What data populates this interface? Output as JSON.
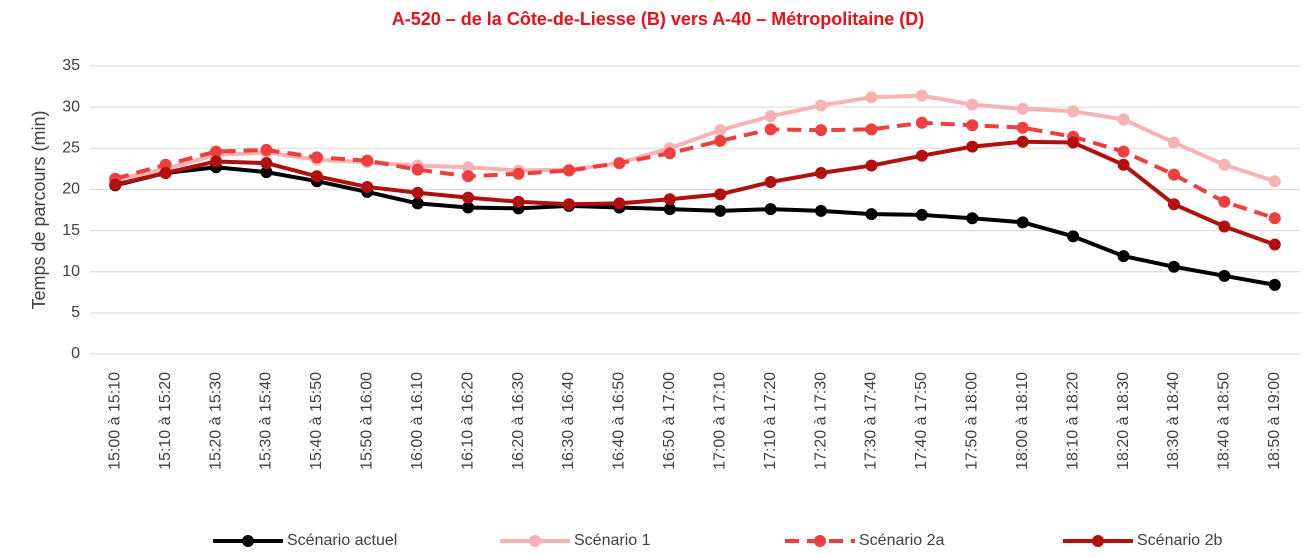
{
  "chart_data": {
    "type": "line",
    "title": "A-520 – de la Côte-de-Liesse (B) vers A-40 – Métropolitaine (D)",
    "y_label": "Temps de parcours (min)",
    "categories": [
      "15:00 à 15:10",
      "15:10 à 15:20",
      "15:20 à 15:30",
      "15:30 à 15:40",
      "15:40 à 15:50",
      "15:50 à 16:00",
      "16:00 à 16:10",
      "16:10 à 16:20",
      "16:20 à 16:30",
      "16:30 à 16:40",
      "16:40 à 16:50",
      "16:50 à 17:00",
      "17:00 à 17:10",
      "17:10 à 17:20",
      "17:20 à 17:30",
      "17:30 à 17:40",
      "17:40 à 17:50",
      "17:50 à 18:00",
      "18:00 à 18:10",
      "18:10 à 18:20",
      "18:20 à 18:30",
      "18:30 à 18:40",
      "18:40 à 18:50",
      "18:50 à 19:00"
    ],
    "series": [
      {
        "name": "Scénario actuel",
        "color": "#000000",
        "dashed": false,
        "values": [
          20.5,
          22,
          22.7,
          22.1,
          21,
          19.7,
          18.3,
          17.8,
          17.7,
          18,
          17.8,
          17.6,
          17.4,
          17.6,
          17.4,
          17,
          16.9,
          16.5,
          16,
          14.3,
          11.9,
          10.6,
          9.5,
          8.4
        ]
      },
      {
        "name": "Scénario 1",
        "color": "#f7b3b3",
        "dashed": false,
        "values": [
          21.2,
          22.5,
          24.2,
          24.5,
          23.6,
          23.3,
          22.9,
          22.7,
          22.3,
          22.4,
          23.2,
          25,
          27.2,
          28.9,
          30.2,
          31.2,
          31.4,
          30.3,
          29.8,
          29.5,
          28.5,
          25.7,
          23,
          21
        ]
      },
      {
        "name": "Scénario 2a",
        "color": "#ef3e3e",
        "dashed": true,
        "values": [
          21.3,
          23,
          24.6,
          24.8,
          23.9,
          23.5,
          22.4,
          21.6,
          21.9,
          22.3,
          23.2,
          24.4,
          25.9,
          27.3,
          27.2,
          27.3,
          28.1,
          27.8,
          27.5,
          26.4,
          24.6,
          21.8,
          18.5,
          16.5
        ]
      },
      {
        "name": "Scénario 2b",
        "color": "#b20f0f",
        "dashed": false,
        "values": [
          20.6,
          22,
          23.4,
          23.2,
          21.6,
          20.3,
          19.6,
          19,
          18.5,
          18.2,
          18.3,
          18.8,
          19.4,
          20.9,
          22,
          22.9,
          24.1,
          25.2,
          25.8,
          25.7,
          23,
          18.2,
          15.5,
          13.3
        ]
      }
    ],
    "ylim": [
      0,
      35
    ],
    "yticks": [
      0,
      5,
      10,
      15,
      20,
      25,
      30,
      35
    ],
    "grid": true
  }
}
